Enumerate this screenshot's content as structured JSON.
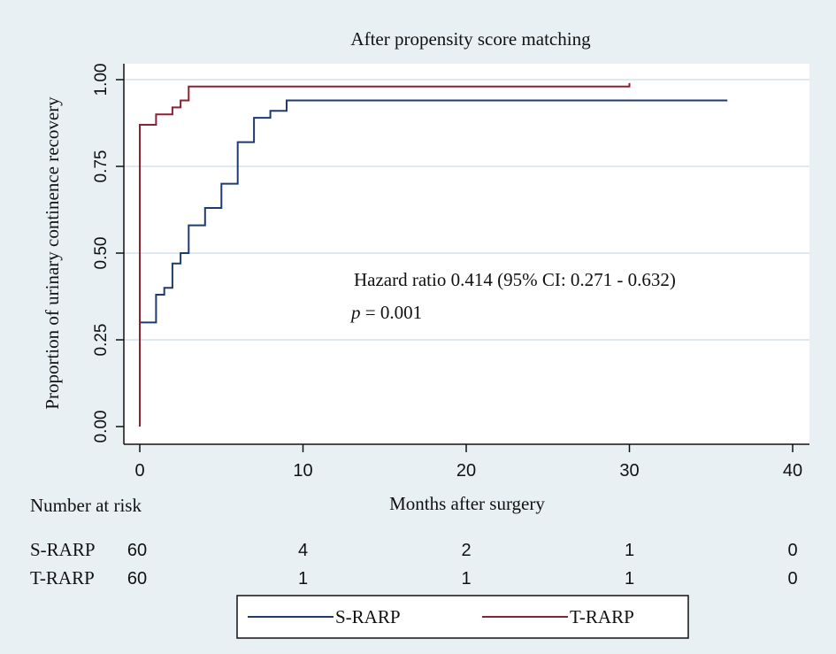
{
  "chart_data": {
    "type": "line",
    "title": "After propensity score matching",
    "xlabel": "Months after surgery",
    "ylabel": "Proportion of urinary continence recovery",
    "xlim": [
      0,
      40
    ],
    "ylim": [
      0,
      1
    ],
    "xticks": [
      "0",
      "10",
      "20",
      "30",
      "40"
    ],
    "yticks": [
      "0.00",
      "0.25",
      "0.50",
      "0.75",
      "1.00"
    ],
    "grid": true,
    "annotation": {
      "line1": "Hazard ratio 0.414 (95% CI: 0.271 - 0.632)",
      "p_symbol": "p",
      "p_rest": " = 0.001"
    },
    "series": [
      {
        "name": "S-RARP",
        "color": "#1f3b6e",
        "step_x": [
          0,
          0,
          1,
          1,
          1.5,
          1.5,
          2,
          2,
          2.5,
          2.5,
          3,
          3,
          4,
          4,
          5,
          5,
          6,
          6,
          7,
          7,
          8,
          8,
          9,
          9,
          36
        ],
        "step_y": [
          0,
          0.3,
          0.3,
          0.38,
          0.38,
          0.4,
          0.4,
          0.47,
          0.47,
          0.5,
          0.5,
          0.58,
          0.58,
          0.63,
          0.63,
          0.7,
          0.7,
          0.82,
          0.82,
          0.89,
          0.89,
          0.91,
          0.91,
          0.94,
          0.94
        ]
      },
      {
        "name": "T-RARP",
        "color": "#8b2232",
        "step_x": [
          0,
          0,
          1,
          1,
          2,
          2,
          2.5,
          2.5,
          3,
          3,
          30,
          30
        ],
        "step_y": [
          0,
          0.87,
          0.87,
          0.9,
          0.9,
          0.92,
          0.92,
          0.94,
          0.94,
          0.98,
          0.98,
          0.99
        ]
      }
    ],
    "risk_table": {
      "header": "Number at risk",
      "rows": [
        {
          "label": "S-RARP",
          "values": [
            "60",
            "4",
            "2",
            "1",
            "0"
          ]
        },
        {
          "label": "T-RARP",
          "values": [
            "60",
            "1",
            "1",
            "1",
            "0"
          ]
        }
      ]
    },
    "legend": {
      "placement": "bottom",
      "entries": [
        "S-RARP",
        "T-RARP"
      ]
    }
  }
}
